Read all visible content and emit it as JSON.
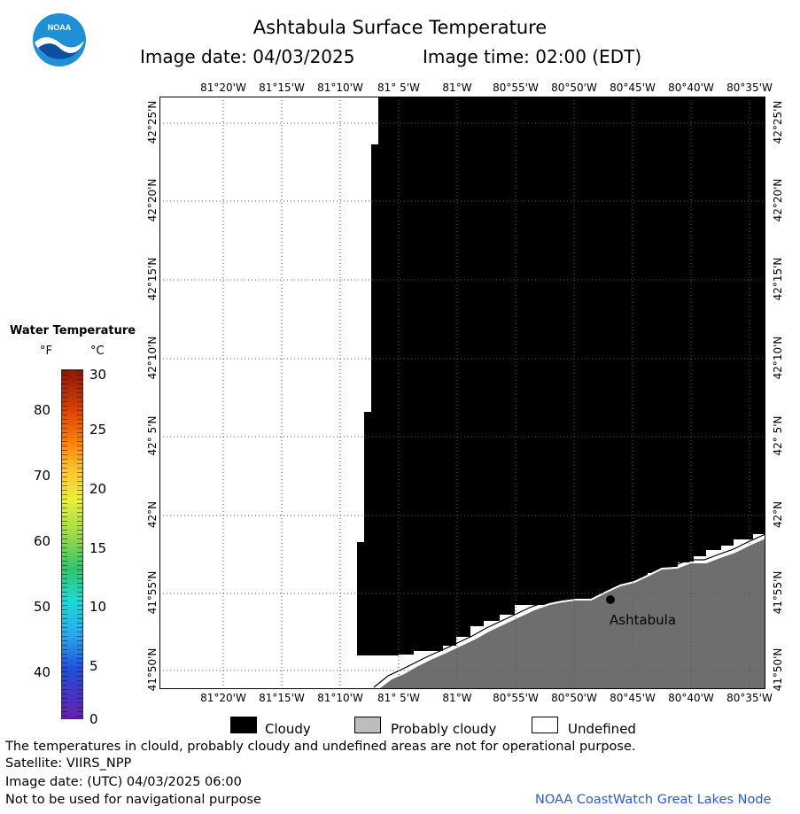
{
  "header": {
    "title": "Ashtabula Surface Temperature",
    "image_date": "Image date: 04/03/2025",
    "image_time": "Image time: 02:00 (EDT)",
    "logo_text": "NOAA"
  },
  "map": {
    "lon_labels": [
      "81°20'W",
      "81°15'W",
      "81°10'W",
      "81° 5'W",
      "81°W",
      "80°55'W",
      "80°50'W",
      "80°45'W",
      "80°40'W",
      "80°35'W"
    ],
    "lat_labels": [
      "42°25'N",
      "42°20'N",
      "42°15'N",
      "42°10'N",
      "42° 5'N",
      "42°N",
      "41°55'N",
      "41°50'N"
    ],
    "city_label": "Ashtabula",
    "colors": {
      "cloudy": "#000000",
      "probably_cloudy": "#6e6e6e",
      "undefined": "#ffffff",
      "grid": "#555555"
    }
  },
  "legend": {
    "title": "Water Temperature",
    "unit_f": "°F",
    "unit_c": "°C",
    "f_ticks": [
      "80",
      "70",
      "60",
      "50",
      "40"
    ],
    "c_ticks": [
      "30",
      "25",
      "20",
      "15",
      "10",
      "5",
      "0"
    ]
  },
  "key": {
    "cloudy": "Cloudy",
    "probably_cloudy": "Probably cloudy",
    "undefined": "Undefined"
  },
  "footer": {
    "disclaimer": "The temperatures in clould, probably cloudy and undefined areas are not for operational purpose.",
    "satellite": "Satellite: VIIRS_NPP",
    "utc_date": "Image date: (UTC) 04/03/2025  06:00",
    "nav_warning": "Not to be used for navigational purpose",
    "credit": "NOAA CoastWatch Great Lakes Node"
  }
}
